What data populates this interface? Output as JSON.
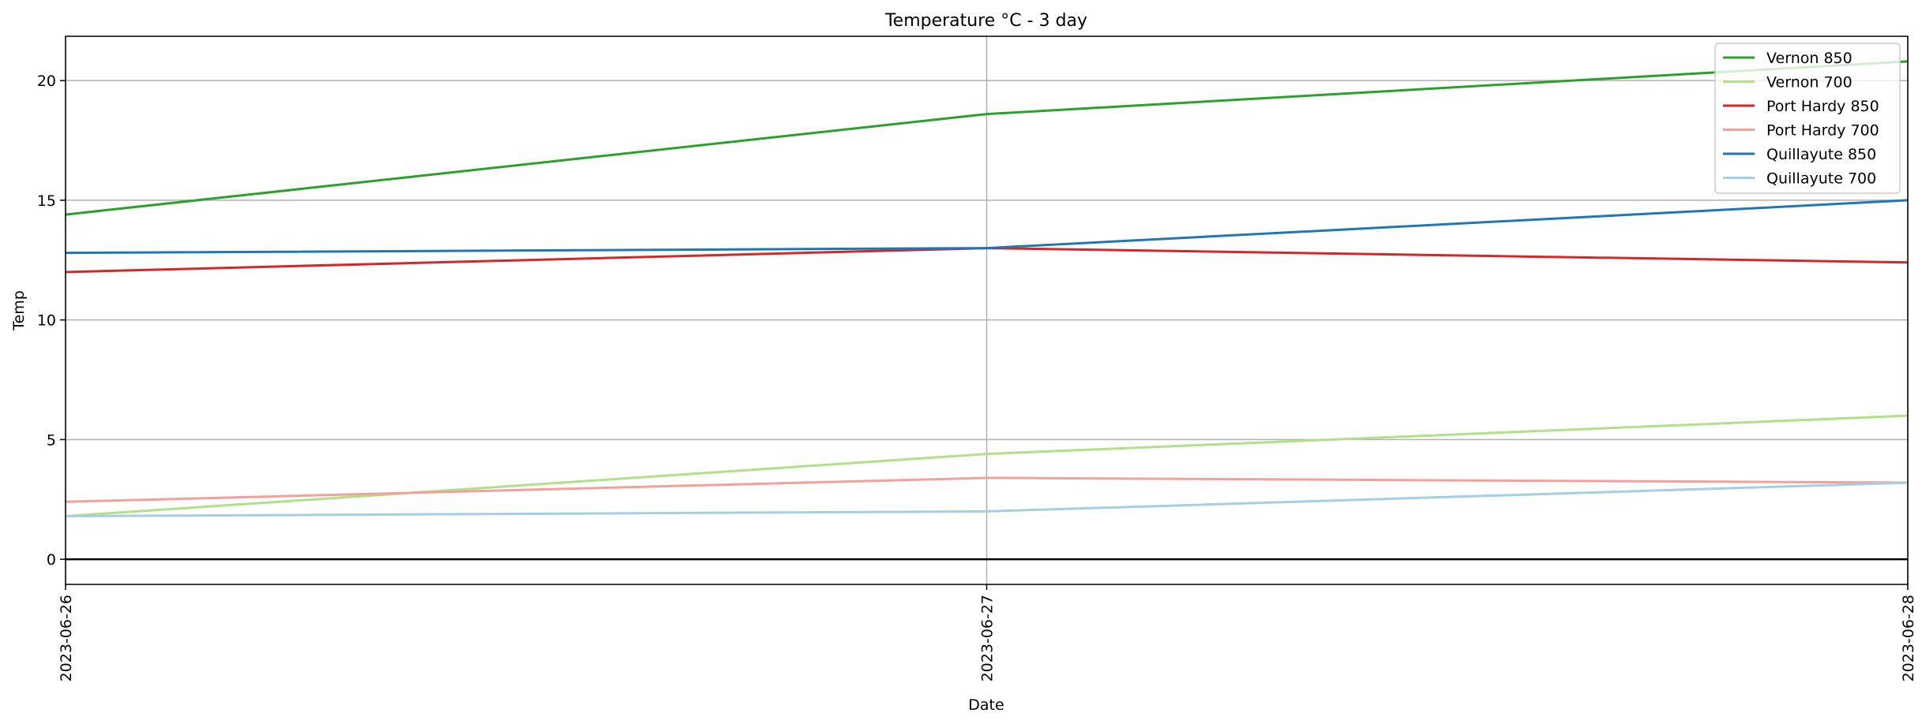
{
  "chart_data": {
    "type": "line",
    "title": "Temperature °C - 3 day",
    "xlabel": "Date",
    "ylabel": "Temp",
    "x": [
      "2023-06-26",
      "2023-06-27",
      "2023-06-28"
    ],
    "ylim": [
      -1.05,
      21.85
    ],
    "yticks": [
      0,
      5,
      10,
      15,
      20
    ],
    "grid": true,
    "legend_position": "top-right",
    "zero_line": true,
    "series": [
      {
        "name": "Vernon 850",
        "color": "#2ca02c",
        "values": [
          14.4,
          18.6,
          20.8
        ]
      },
      {
        "name": "Vernon 700",
        "color": "#b2df8a",
        "values": [
          1.8,
          4.4,
          6.0
        ]
      },
      {
        "name": "Port Hardy 850",
        "color": "#d62728",
        "values": [
          12.0,
          13.0,
          12.4
        ]
      },
      {
        "name": "Port Hardy 700",
        "color": "#f4a09a",
        "values": [
          2.4,
          3.4,
          3.2
        ]
      },
      {
        "name": "Quillayute 850",
        "color": "#1f77b4",
        "values": [
          12.8,
          13.0,
          15.0
        ]
      },
      {
        "name": "Quillayute 700",
        "color": "#a6cee3",
        "values": [
          1.8,
          2.0,
          3.2
        ]
      }
    ]
  }
}
